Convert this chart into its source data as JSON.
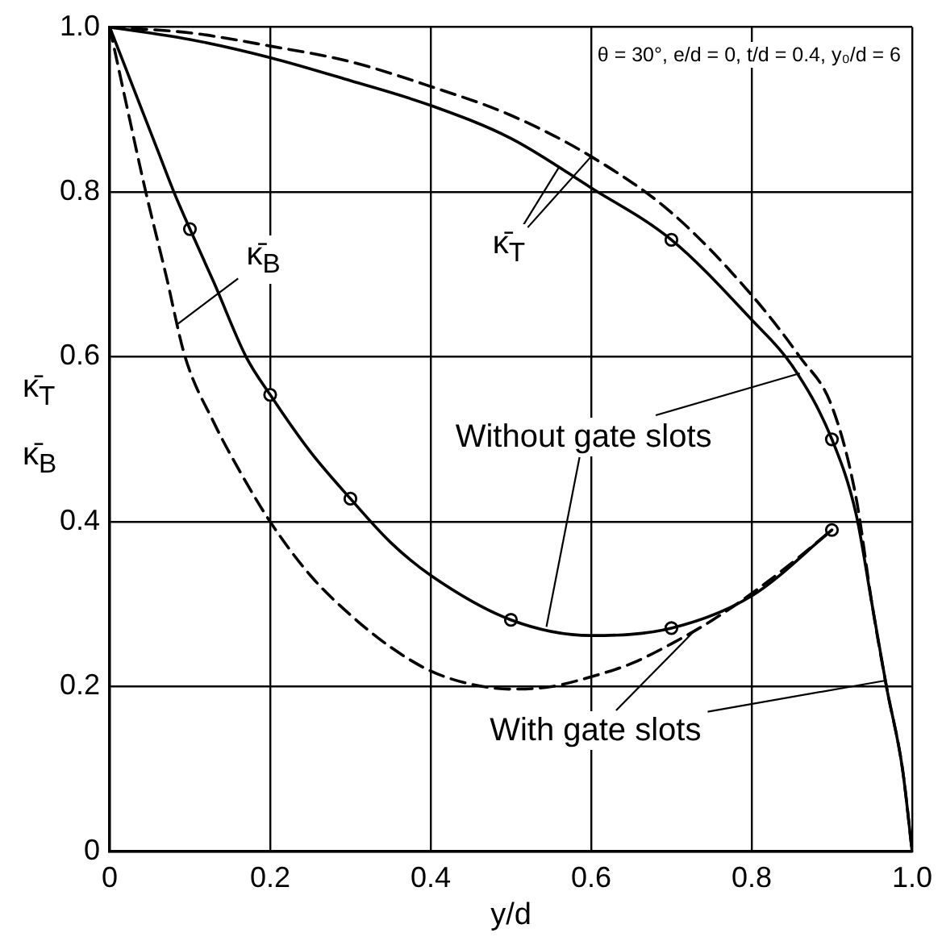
{
  "chart_data": {
    "type": "line",
    "xlabel": "y/d",
    "ylabel": "κ̄$_{T}$ κ̄$_{B}$",
    "xlim": [
      0,
      1
    ],
    "ylim": [
      0,
      1
    ],
    "xticks": [
      0,
      0.2,
      0.4,
      0.6,
      0.8,
      {
        "value": 1,
        "label": "1.0"
      }
    ],
    "yticks": [
      0,
      0.2,
      0.4,
      0.6,
      0.8,
      {
        "value": 1,
        "label": "1.0"
      }
    ],
    "grid": true,
    "annotations": [
      {
        "text": "κ̄$_{B}$",
        "x": 0.085,
        "y": 0.64
      },
      {
        "text": "κ̄$_{T}$",
        "x": 0.6,
        "y": 0.843
      },
      {
        "text": "Without gate slots",
        "x": 0.86,
        "y": 0.58
      },
      {
        "text": "With gate slots",
        "x": 0.73,
        "y": 0.269
      },
      "θ = 30°, e/d = 0, t/d = 0.4, y₀/d = 6"
    ],
    "series": [
      {
        "color": "#000000",
        "line_style": "solid",
        "x": [
          0,
          0.1,
          0.2,
          0.3,
          0.4,
          0.5,
          0.6,
          0.7,
          0.8,
          0.85,
          0.9,
          0.93,
          0.95,
          0.968,
          0.988,
          1.0
        ],
        "values": [
          1.0,
          0.985,
          0.963,
          0.935,
          0.905,
          0.865,
          0.805,
          0.742,
          0.645,
          0.59,
          0.5,
          0.41,
          0.3,
          0.2,
          0.1,
          0
        ]
      },
      {
        "color": "#000000",
        "line_style": "dashed",
        "x": [
          0,
          0.1,
          0.2,
          0.3,
          0.4,
          0.5,
          0.6,
          0.7,
          0.8,
          0.86,
          0.9,
          0.93,
          0.95,
          0.968,
          0.988,
          1.0
        ],
        "values": [
          1.0,
          0.993,
          0.977,
          0.958,
          0.928,
          0.893,
          0.843,
          0.775,
          0.675,
          0.6,
          0.54,
          0.43,
          0.3,
          0.2,
          0.1,
          0
        ]
      },
      {
        "color": "#000000",
        "line_style": "solid",
        "x": [
          0,
          0.02,
          0.04,
          0.06,
          0.08,
          0.1,
          0.13,
          0.17,
          0.2,
          0.25,
          0.3,
          0.35,
          0.4,
          0.5,
          0.6,
          0.7,
          0.8,
          0.9
        ],
        "values": [
          1.0,
          0.95,
          0.9,
          0.85,
          0.8,
          0.755,
          0.69,
          0.6,
          0.554,
          0.485,
          0.428,
          0.375,
          0.335,
          0.281,
          0.262,
          0.271,
          0.31,
          0.39
        ]
      },
      {
        "color": "#000000",
        "line_style": "dashed",
        "x": [
          0,
          0.02,
          0.045,
          0.07,
          0.094,
          0.13,
          0.16,
          0.2,
          0.25,
          0.3,
          0.35,
          0.4,
          0.45,
          0.5,
          0.55,
          0.6,
          0.65,
          0.7,
          0.75,
          0.8,
          0.85,
          0.9
        ],
        "values": [
          1.0,
          0.91,
          0.8,
          0.7,
          0.6,
          0.52,
          0.465,
          0.4,
          0.335,
          0.287,
          0.248,
          0.219,
          0.203,
          0.197,
          0.2,
          0.212,
          0.228,
          0.252,
          0.28,
          0.313,
          0.35,
          0.39
        ]
      },
      {
        "type": "scatter",
        "color": "#000000",
        "marker": "circle",
        "x": [
          0.7,
          0.9
        ],
        "values": [
          0.742,
          0.5
        ]
      },
      {
        "type": "scatter",
        "color": "#000000",
        "marker": "circle",
        "x": [
          0.1,
          0.2,
          0.3,
          0.5,
          0.7,
          0.9
        ],
        "values": [
          0.755,
          0.554,
          0.428,
          0.281,
          0.271,
          0.39
        ]
      }
    ]
  }
}
